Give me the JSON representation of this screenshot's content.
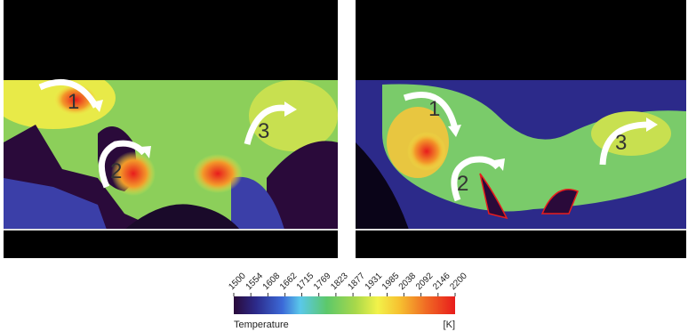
{
  "panels": [
    {
      "labels": [
        "1",
        "2",
        "3"
      ]
    },
    {
      "labels": [
        "1",
        "2",
        "3"
      ]
    }
  ],
  "colorbar": {
    "ticks": [
      1500,
      1554,
      1608,
      1662,
      1715,
      1769,
      1823,
      1877,
      1931,
      1985,
      2038,
      2092,
      2146,
      2200
    ],
    "title": "Temperature",
    "unit": "[K]"
  }
}
